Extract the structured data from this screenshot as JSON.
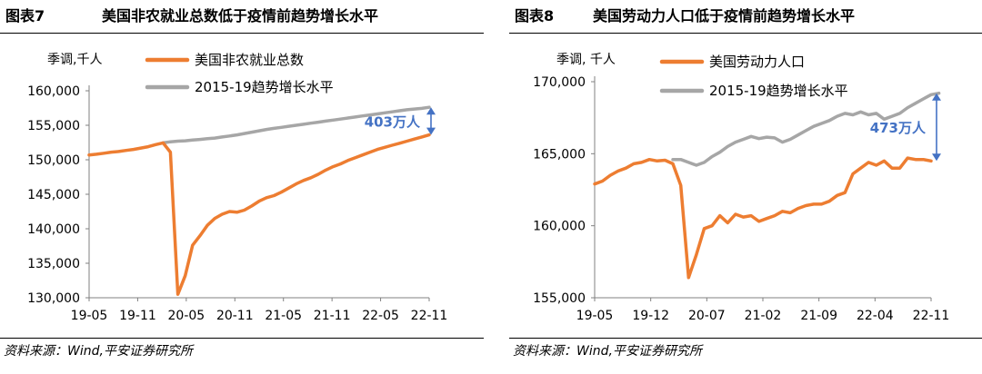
{
  "figures": [
    {
      "figure_no": "图表7",
      "title": "美国非农就业总数低于疫情前趋势增长水平",
      "source": "资料来源：Wind,平安证券研究所",
      "colors": {
        "actual": "#ED7D31",
        "trend": "#A6A6A6",
        "annotation": "#4472C4",
        "axis": "#808080"
      },
      "chart_data": {
        "type": "line",
        "unit_label": "季调,千人",
        "x_tick_labels": [
          "19-05",
          "19-11",
          "20-05",
          "20-11",
          "21-05",
          "21-11",
          "22-05",
          "22-11"
        ],
        "y_tick_labels": [
          "130,000",
          "135,000",
          "140,000",
          "145,000",
          "150,000",
          "155,000",
          "160,000"
        ],
        "ylim": [
          130000,
          160000
        ],
        "grid": false,
        "legend_position": "top",
        "series": [
          {
            "name": "美国非农就业总数",
            "values": [
              150700,
              150800,
              150950,
              151100,
              151200,
              151350,
              151500,
              151700,
              151900,
              152200,
              152450,
              151100,
              130500,
              133200,
              137600,
              139000,
              140500,
              141500,
              142100,
              142500,
              142400,
              142700,
              143300,
              144000,
              144500,
              144800,
              145300,
              145900,
              146500,
              147000,
              147400,
              147900,
              148500,
              149000,
              149400,
              149900,
              150300,
              150700,
              151100,
              151500,
              151800,
              152100,
              152400,
              152700,
              153000,
              153300,
              153600
            ]
          },
          {
            "name": "2015-19趋势增长水平",
            "start_index": 10,
            "values": [
              152450,
              152600,
              152700,
              152750,
              152850,
              152950,
              153050,
              153150,
              153300,
              153450,
              153600,
              153800,
              154000,
              154200,
              154400,
              154550,
              154700,
              154850,
              155000,
              155150,
              155300,
              155450,
              155600,
              155750,
              155900,
              156050,
              156200,
              156350,
              156500,
              156650,
              156800,
              156950,
              157100,
              157250,
              157350,
              157450,
              157600
            ]
          }
        ],
        "annotation": "403万人"
      }
    },
    {
      "figure_no": "图表8",
      "title": "美国劳动力人口低于疫情前趋势增长水平",
      "source": "资料来源：Wind,平安证券研究所",
      "colors": {
        "actual": "#ED7D31",
        "trend": "#A6A6A6",
        "annotation": "#4472C4",
        "axis": "#808080"
      },
      "chart_data": {
        "type": "line",
        "unit_label": "季调, 千人",
        "x_tick_labels": [
          "19-05",
          "19-12",
          "20-07",
          "21-02",
          "21-09",
          "22-04",
          "22-11"
        ],
        "y_tick_labels": [
          "155,000",
          "160,000",
          "165,000",
          "170,000"
        ],
        "ylim": [
          155000,
          170000
        ],
        "grid": false,
        "legend_position": "top",
        "series": [
          {
            "name": "美国劳动力人口",
            "values": [
              162900,
              163100,
              163500,
              163800,
              164000,
              164300,
              164400,
              164600,
              164500,
              164550,
              164300,
              162800,
              156400,
              158000,
              159800,
              160000,
              160700,
              160200,
              160800,
              160600,
              160700,
              160300,
              160500,
              160700,
              161000,
              160900,
              161200,
              161400,
              161500,
              161500,
              161700,
              162100,
              162300,
              163600,
              164000,
              164400,
              164200,
              164500,
              164000,
              164000,
              164700,
              164600,
              164600,
              164500
            ]
          },
          {
            "name": "2015-19趋势增长水平",
            "start_index": 10,
            "values": [
              164600,
              164600,
              164400,
              164200,
              164400,
              164800,
              165100,
              165500,
              165800,
              166000,
              166200,
              166050,
              166150,
              166100,
              165800,
              166000,
              166300,
              166600,
              166900,
              167100,
              167300,
              167600,
              167800,
              167700,
              167900,
              167700,
              167800,
              167400,
              167600,
              167800,
              168200,
              168500,
              168800,
              169100,
              169200
            ]
          }
        ],
        "annotation": "473万人"
      }
    }
  ]
}
